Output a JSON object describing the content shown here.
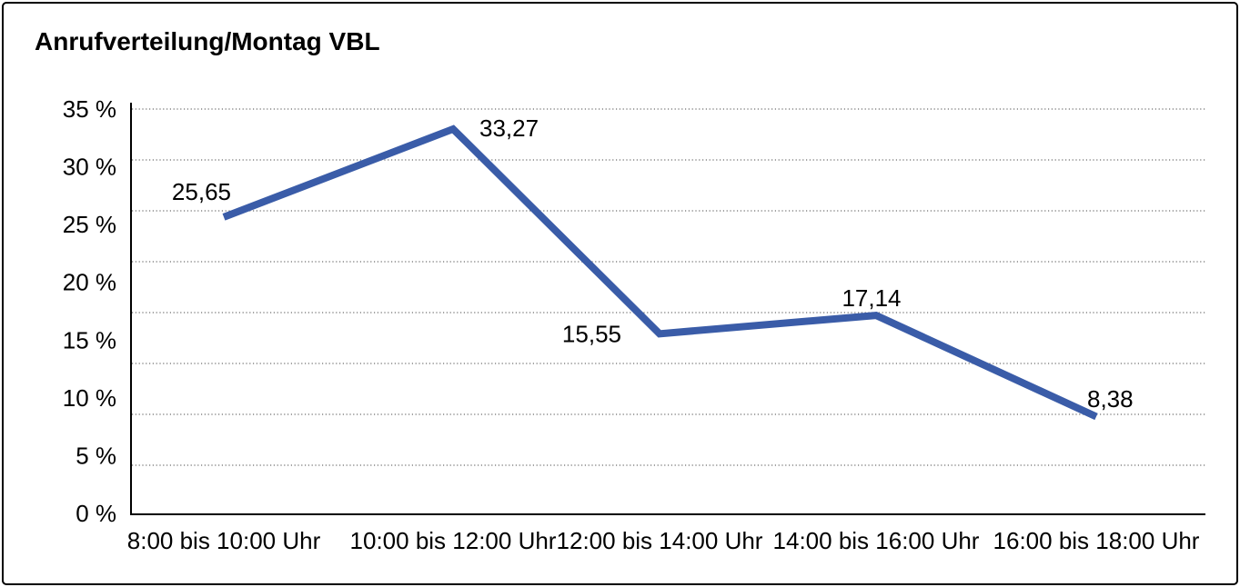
{
  "chart_data": {
    "type": "line",
    "title": "Anrufverteilung/Montag VBL",
    "categories": [
      "8:00 bis 10:00 Uhr",
      "10:00 bis 12:00 Uhr",
      "12:00 bis 14:00 Uhr",
      "14:00 bis 16:00 Uhr",
      "16:00 bis 18:00 Uhr"
    ],
    "values": [
      25.65,
      33.27,
      15.55,
      17.14,
      8.38
    ],
    "value_labels": [
      "25,65",
      "33,27",
      "15,55",
      "17,14",
      "8,38"
    ],
    "y_ticks": [
      {
        "value": 35,
        "label": "35 %"
      },
      {
        "value": 30,
        "label": "30 %"
      },
      {
        "value": 25,
        "label": "25 %"
      },
      {
        "value": 20,
        "label": "20 %"
      },
      {
        "value": 15,
        "label": "15 %"
      },
      {
        "value": 10,
        "label": "10 %"
      },
      {
        "value": 5,
        "label": "5 %"
      },
      {
        "value": 0,
        "label": "0 %"
      }
    ],
    "ylim": [
      0,
      35
    ],
    "xlabel": "",
    "ylabel": "",
    "legend": "none",
    "grid": "horizontal-dotted",
    "line_color": "#3A5CA8",
    "text_color": "#000000",
    "grid_color": "#6e6e6e",
    "axis_color": "#000000"
  }
}
